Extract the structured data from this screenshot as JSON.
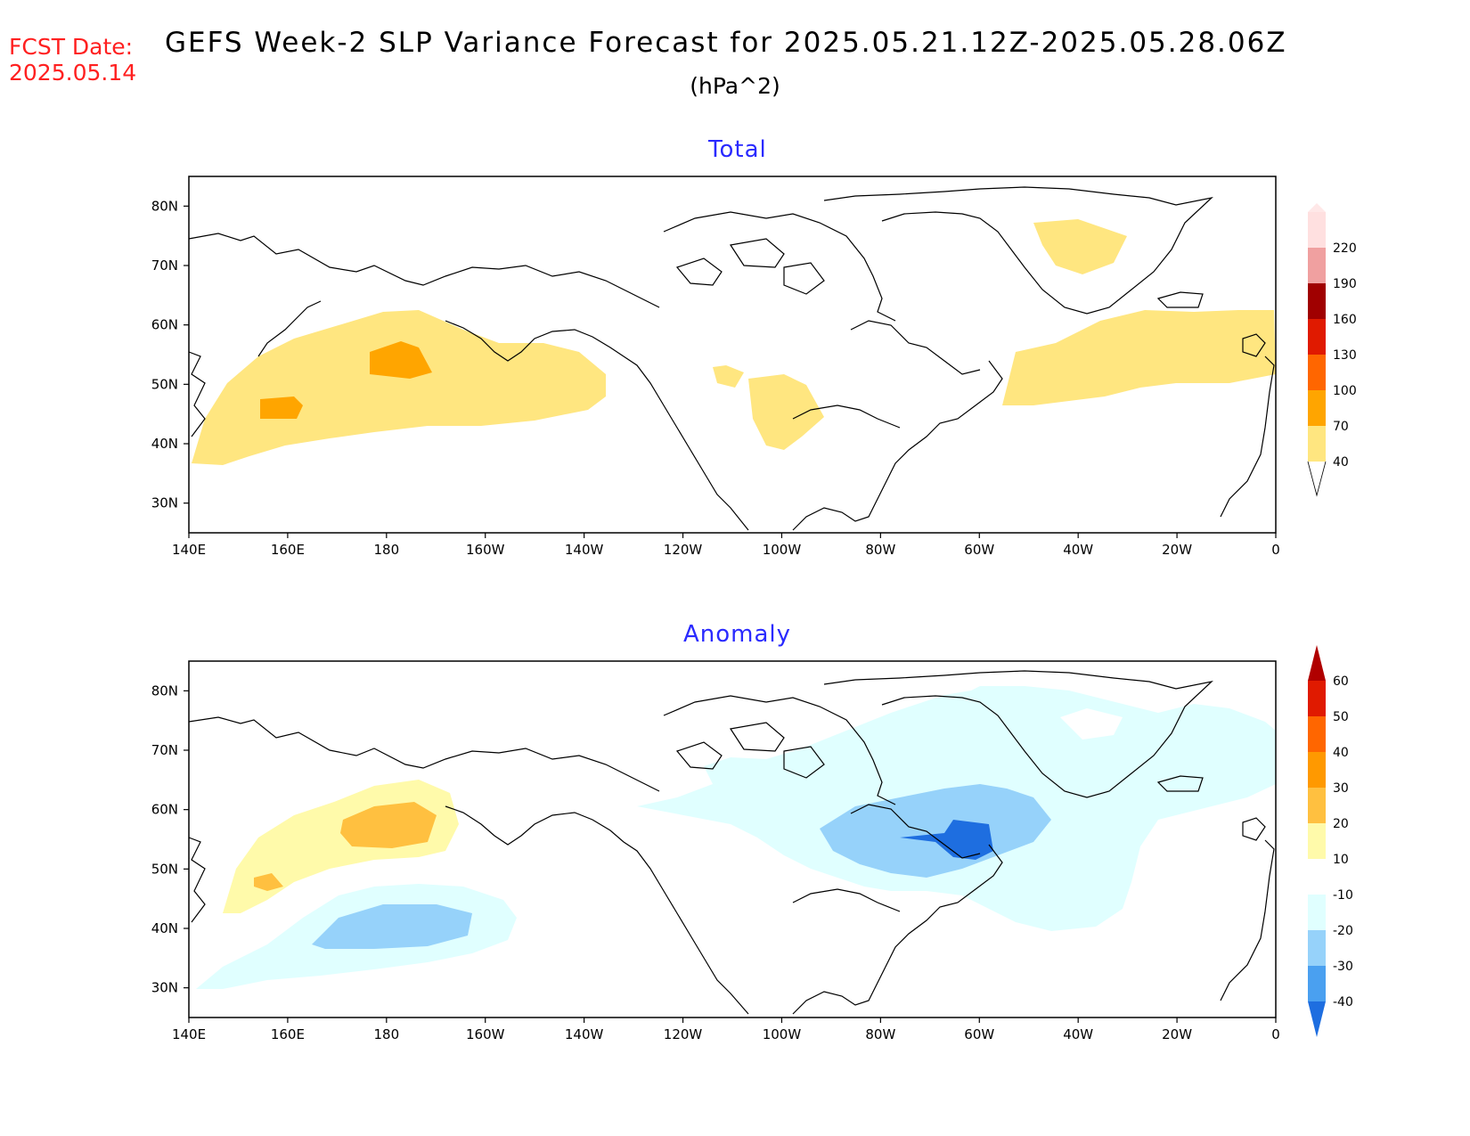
{
  "header": {
    "fcst_label": "FCST Date:",
    "fcst_date": "2025.05.14",
    "title": "GEFS Week-2 SLP Variance Forecast for 2025.05.21.12Z-2025.05.28.06Z",
    "units": "(hPa^2)"
  },
  "panels": [
    {
      "title": "Total",
      "lat_ticks": [
        "80N",
        "70N",
        "60N",
        "50N",
        "40N",
        "30N"
      ],
      "lon_ticks": [
        "140E",
        "160E",
        "180",
        "160W",
        "140W",
        "120W",
        "100W",
        "80W",
        "60W",
        "40W",
        "20W",
        "0"
      ],
      "colorbar": {
        "levels": [
          "40",
          "70",
          "100",
          "130",
          "160",
          "190",
          "220"
        ],
        "colors": [
          "#ffe680",
          "#ffa500",
          "#ff6600",
          "#e01a00",
          "#a00000",
          "#f0a0a0",
          "#ffe0e0"
        ]
      }
    },
    {
      "title": "Anomaly",
      "lat_ticks": [
        "80N",
        "70N",
        "60N",
        "50N",
        "40N",
        "30N"
      ],
      "lon_ticks": [
        "140E",
        "160E",
        "180",
        "160W",
        "140W",
        "120W",
        "100W",
        "80W",
        "60W",
        "40W",
        "20W",
        "0"
      ],
      "colorbar": {
        "levels": [
          "-40",
          "-30",
          "-20",
          "-10",
          "10",
          "20",
          "30",
          "40",
          "50",
          "60"
        ],
        "colors": [
          "#1e6ee0",
          "#4aa0f0",
          "#96d2fa",
          "#e0ffff",
          "#ffffff",
          "#fffaaa",
          "#ffc040",
          "#ff9900",
          "#ff6600",
          "#e01a00",
          "#b00000"
        ]
      }
    }
  ],
  "colors": {
    "title_red": "#ff2020",
    "panel_title_blue": "#2a2aff"
  }
}
